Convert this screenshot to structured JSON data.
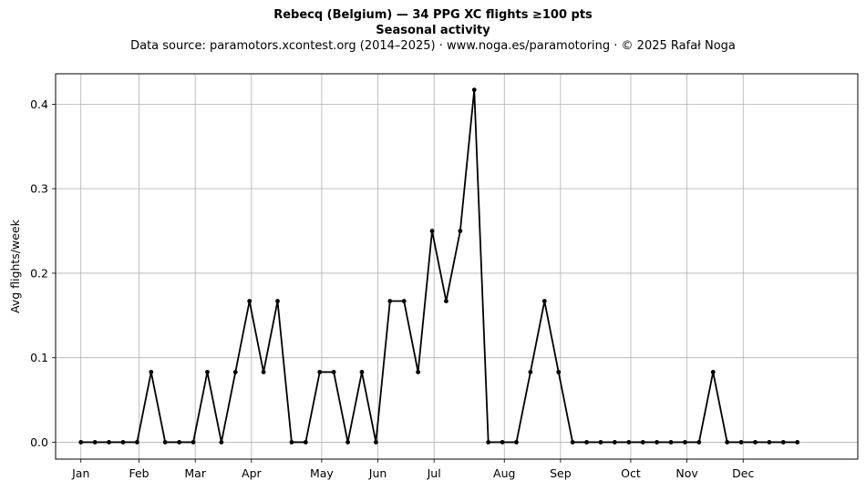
{
  "chart_data": {
    "type": "line",
    "title": "Rebecq (Belgium)  —  34 PPG XC flights ≥100 pts",
    "title_line2": "Seasonal activity",
    "subtitle": "Data source: paramotors.xcontest.org (2014–2025)  ·  www.noga.es/paramotoring  ·  © 2025 Rafał Noga",
    "ylabel": "Avg flights/week",
    "xlabel": "",
    "ylim": [
      -0.02,
      0.436
    ],
    "xlim": [
      -1.8,
      55.3
    ],
    "grid": true,
    "line_color": "#000000",
    "month_ticks": [
      {
        "label": "Jan",
        "week": 0
      },
      {
        "label": "Feb",
        "week": 4.14
      },
      {
        "label": "Mar",
        "week": 8.14
      },
      {
        "label": "Apr",
        "week": 12.14
      },
      {
        "label": "May",
        "week": 17.14
      },
      {
        "label": "Jun",
        "week": 21.14
      },
      {
        "label": "Jul",
        "week": 25.14
      },
      {
        "label": "Aug",
        "week": 30.14
      },
      {
        "label": "Sep",
        "week": 34.14
      },
      {
        "label": "Oct",
        "week": 39.14
      },
      {
        "label": "Nov",
        "week": 43.14
      },
      {
        "label": "Dec",
        "week": 47.14
      }
    ],
    "y_ticks": [
      0.0,
      0.1,
      0.2,
      0.3,
      0.4
    ],
    "y_tick_labels": [
      "0.0",
      "0.1",
      "0.2",
      "0.3",
      "0.4"
    ],
    "series": [
      {
        "x": [
          0,
          1,
          2,
          3,
          4,
          5,
          6,
          7,
          8,
          9,
          10,
          11,
          12,
          13,
          14,
          15,
          16,
          17,
          18,
          19,
          20,
          21,
          22,
          23,
          24,
          25,
          26,
          27,
          28,
          29,
          30,
          31,
          32,
          33,
          34,
          35,
          36,
          37,
          38,
          39,
          40,
          41,
          42,
          43,
          44,
          45,
          46,
          47,
          48,
          49,
          50,
          51
        ],
        "values": [
          0,
          0,
          0,
          0,
          0,
          0.083,
          0,
          0,
          0,
          0.083,
          0,
          0.083,
          0.167,
          0.083,
          0.167,
          0,
          0,
          0.083,
          0.083,
          0,
          0.083,
          0,
          0.167,
          0.167,
          0.083,
          0.25,
          0.167,
          0.25,
          0.417,
          0,
          0,
          0,
          0.083,
          0.167,
          0.083,
          0,
          0,
          0,
          0,
          0,
          0,
          0,
          0,
          0,
          0,
          0.083,
          0,
          0,
          0,
          0,
          0,
          0
        ]
      }
    ]
  }
}
